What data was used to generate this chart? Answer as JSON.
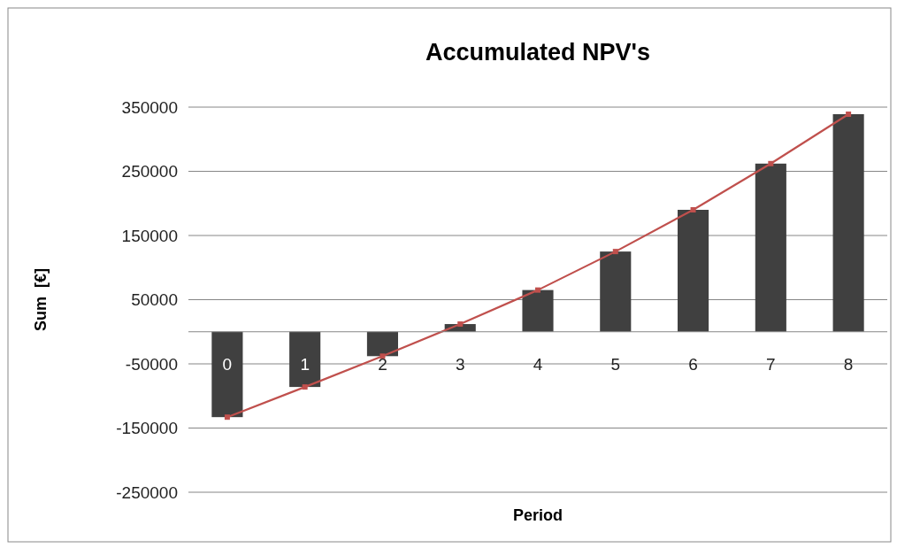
{
  "chart_data": {
    "type": "bar",
    "title": "Accumulated NPV's",
    "xlabel": "Period",
    "ylabel": "Sum  [€]",
    "categories": [
      "0",
      "1",
      "2",
      "3",
      "4",
      "5",
      "6",
      "7",
      "8"
    ],
    "series": [
      {
        "color": "#404040",
        "values": [
          -133000,
          -86000,
          -38000,
          12000,
          65000,
          125000,
          190000,
          262000,
          339000
        ]
      },
      {
        "type": "line",
        "color": "#c0504d",
        "values": [
          -133000,
          -86000,
          -38000,
          12000,
          65000,
          125000,
          190000,
          262000,
          339000
        ]
      }
    ],
    "ylim": [
      -250000,
      350000
    ],
    "yticks": [
      -250000,
      -150000,
      -50000,
      50000,
      150000,
      250000,
      350000
    ],
    "grid": "y",
    "marker": "square"
  }
}
